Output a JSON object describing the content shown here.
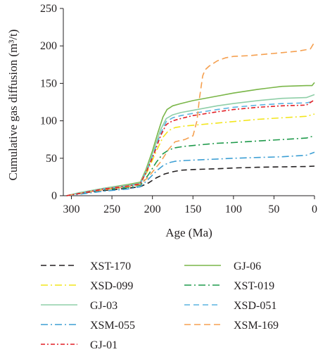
{
  "chart_data": {
    "type": "line",
    "xlabel": "Age (Ma)",
    "ylabel": "Cumulative gas diffusion (m³/t)",
    "xlim": [
      310,
      0
    ],
    "ylim": [
      0,
      250
    ],
    "x_reversed": true,
    "x_ticks": [
      300,
      250,
      200,
      150,
      100,
      50,
      0
    ],
    "y_ticks": [
      0,
      50,
      100,
      150,
      200,
      250
    ],
    "grid": false,
    "legend_position": "bottom",
    "series": [
      {
        "name": "XST-170",
        "color": "#231f20",
        "dash": "8,5",
        "x": [
          306,
          290,
          260,
          230,
          215,
          205,
          195,
          185,
          175,
          165,
          150,
          120,
          100,
          70,
          40,
          10,
          0
        ],
        "y": [
          0,
          3,
          7,
          10,
          12,
          17,
          24,
          29,
          32,
          34,
          35,
          36,
          37,
          38,
          38.5,
          39,
          39.5
        ]
      },
      {
        "name": "GJ-06",
        "color": "#7ab648",
        "dash": "",
        "x": [
          306,
          290,
          260,
          230,
          215,
          208,
          200,
          193,
          187,
          182,
          175,
          165,
          150,
          120,
          100,
          70,
          40,
          10,
          3,
          0
        ],
        "y": [
          0,
          4,
          10,
          15,
          18,
          35,
          60,
          85,
          105,
          115,
          120,
          123,
          127,
          133,
          137,
          142,
          146,
          147,
          147,
          151
        ]
      },
      {
        "name": "XSD-099",
        "color": "#f2e51c",
        "dash": "10,4,2,4",
        "x": [
          306,
          290,
          260,
          230,
          215,
          205,
          195,
          187,
          180,
          172,
          160,
          140,
          120,
          100,
          70,
          40,
          10,
          0
        ],
        "y": [
          0,
          3,
          9,
          13,
          16,
          35,
          60,
          78,
          87,
          91,
          93,
          95,
          97,
          99,
          102,
          104,
          106,
          109
        ]
      },
      {
        "name": "XST-019",
        "color": "#1f9a4b",
        "dash": "10,4,2,4",
        "x": [
          306,
          290,
          260,
          230,
          215,
          205,
          195,
          187,
          180,
          172,
          160,
          140,
          120,
          100,
          70,
          40,
          10,
          0
        ],
        "y": [
          0,
          3,
          8,
          11,
          14,
          28,
          45,
          56,
          61,
          64,
          66,
          68,
          70,
          71,
          73,
          75,
          77,
          80
        ]
      },
      {
        "name": "GJ-03",
        "color": "#8fcfa8",
        "dash": "",
        "x": [
          306,
          290,
          260,
          230,
          215,
          207,
          198,
          190,
          183,
          175,
          165,
          150,
          120,
          100,
          70,
          40,
          10,
          0
        ],
        "y": [
          0,
          4,
          10,
          14,
          17,
          35,
          62,
          88,
          103,
          108,
          111,
          114,
          120,
          123,
          127,
          130,
          131,
          135
        ]
      },
      {
        "name": "XSD-051",
        "color": "#5ab4e0",
        "dash": "8,5",
        "x": [
          306,
          290,
          260,
          230,
          215,
          207,
          198,
          190,
          183,
          175,
          165,
          150,
          120,
          100,
          70,
          40,
          10,
          0
        ],
        "y": [
          0,
          3,
          9,
          13,
          16,
          33,
          58,
          83,
          99,
          104,
          107,
          110,
          115,
          118,
          121,
          123,
          124,
          126
        ]
      },
      {
        "name": "XSM-055",
        "color": "#3d9fd4",
        "dash": "10,4,2,4",
        "x": [
          306,
          290,
          260,
          230,
          215,
          205,
          195,
          187,
          180,
          172,
          160,
          140,
          120,
          100,
          70,
          40,
          10,
          0
        ],
        "y": [
          0,
          2,
          6,
          9,
          12,
          22,
          33,
          40,
          44,
          46,
          47,
          48,
          49,
          50,
          51,
          52,
          54,
          58
        ]
      },
      {
        "name": "XSM-169",
        "color": "#f5a050",
        "dash": "9,5",
        "x": [
          306,
          290,
          260,
          230,
          215,
          205,
          190,
          180,
          172,
          160,
          150,
          145,
          142,
          138,
          135,
          130,
          120,
          110,
          100,
          80,
          60,
          40,
          20,
          5,
          0
        ],
        "y": [
          0,
          3,
          8,
          12,
          15,
          25,
          45,
          62,
          72,
          75,
          80,
          100,
          130,
          160,
          168,
          173,
          180,
          184,
          186,
          187,
          189,
          191,
          193,
          196,
          205
        ]
      },
      {
        "name": "GJ-01",
        "color": "#e21f26",
        "dash": "6,3,2,3",
        "x": [
          306,
          290,
          260,
          230,
          215,
          207,
          198,
          190,
          183,
          175,
          165,
          150,
          120,
          100,
          70,
          40,
          10,
          0
        ],
        "y": [
          0,
          3,
          9,
          13,
          16,
          33,
          56,
          80,
          95,
          100,
          103,
          107,
          112,
          115,
          118,
          120,
          121,
          128
        ]
      }
    ]
  }
}
